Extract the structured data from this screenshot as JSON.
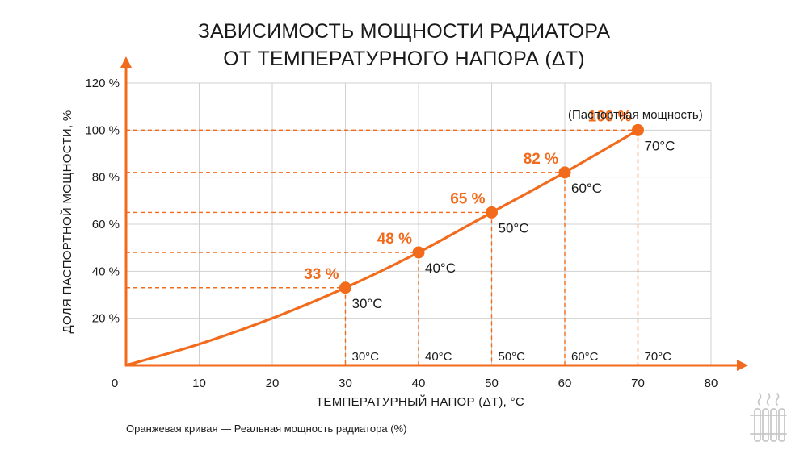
{
  "title": {
    "line1": "ЗАВИСИМОСТЬ МОЩНОСТИ РАДИАТОРА",
    "line2": "ОТ ТЕМПЕРАТУРНОГО НАПОРА (ΔТ)"
  },
  "caption": "Оранжевая кривая — Реальная мощность радиатора (%)",
  "colors": {
    "accent": "#f26b1d",
    "grid": "#d0d0d0",
    "text": "#1a1a1a",
    "icon": "#c8c8c8"
  },
  "icon": "radiator-icon",
  "chart_data": {
    "type": "line",
    "xlabel": "ТЕМПЕРАТУРНЫЙ НАПОР (ΔТ), °С",
    "ylabel": "ДОЛЯ ПАСПОРТНОЙ МОЩНОСТИ, %",
    "xlim": [
      0,
      80
    ],
    "ylim": [
      0,
      120
    ],
    "x_ticks": [
      "0",
      "10",
      "20",
      "30",
      "40",
      "50",
      "60",
      "70",
      "80"
    ],
    "y_ticks": [
      "20 %",
      "40 %",
      "60 %",
      "80 %",
      "100 %",
      "120 %"
    ],
    "grid": true,
    "series": [
      {
        "x": [
          0,
          10,
          20,
          30,
          40,
          50,
          60,
          70
        ],
        "y": [
          0,
          9,
          20,
          33,
          48,
          65,
          82,
          100
        ]
      }
    ],
    "markers": [
      {
        "x": 30,
        "y": 33,
        "pct": "33 %",
        "temp": "30°С",
        "base": "30°С"
      },
      {
        "x": 40,
        "y": 48,
        "pct": "48 %",
        "temp": "40°С",
        "base": "40°С"
      },
      {
        "x": 50,
        "y": 65,
        "pct": "65 %",
        "temp": "50°С",
        "base": "50°С"
      },
      {
        "x": 60,
        "y": 82,
        "pct": "82 %",
        "temp": "60°С",
        "base": "60°С"
      },
      {
        "x": 70,
        "y": 100,
        "pct": "100 %",
        "temp": "70°С",
        "base": "70°С"
      }
    ],
    "annotation": "(Паспортная мощность)"
  }
}
